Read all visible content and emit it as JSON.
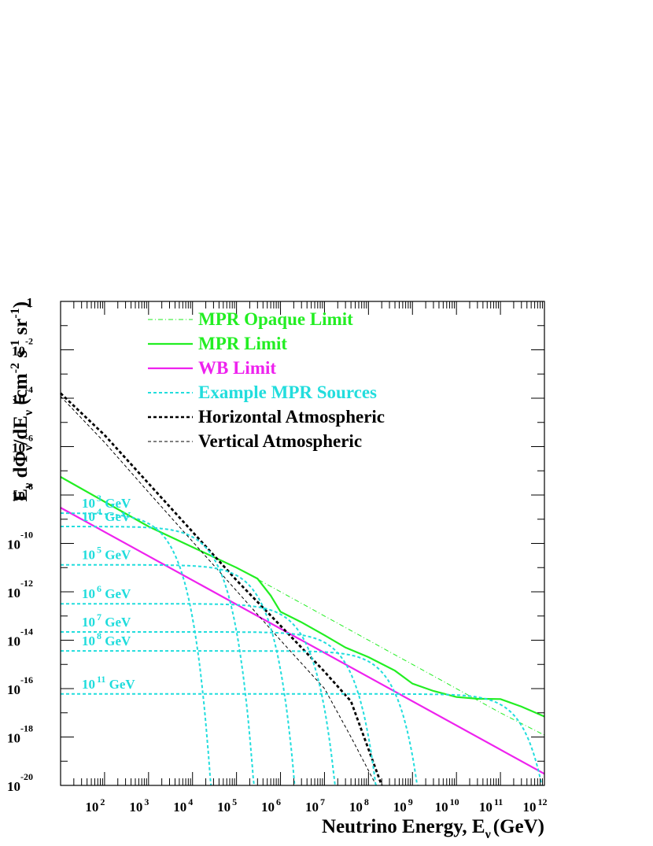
{
  "chart_data": {
    "type": "line",
    "xlabel": "Neutrino Energy, E",
    "xlabel_subscript": "ν",
    "xlabel_unit": "(GeV)",
    "ylabel_parts": {
      "e": "E",
      "nu_sub": "ν",
      "mid": " dΦ",
      "over_de": "/dE",
      "unit_open": " (cm",
      "exp_cm": "-2",
      "s": " s",
      "exp_s": "-1",
      "sr": " sr",
      "exp_sr": "-1",
      "unit_close": ")"
    },
    "x_scale": "log",
    "y_scale": "log",
    "xlim": [
      10,
      1000000000000.0
    ],
    "ylim": [
      1e-20,
      1
    ],
    "x_ticks": [
      {
        "base": "10",
        "exp": "2"
      },
      {
        "base": "10",
        "exp": "3"
      },
      {
        "base": "10",
        "exp": "4"
      },
      {
        "base": "10",
        "exp": "5"
      },
      {
        "base": "10",
        "exp": "6"
      },
      {
        "base": "10",
        "exp": "7"
      },
      {
        "base": "10",
        "exp": "8"
      },
      {
        "base": "10",
        "exp": "9"
      },
      {
        "base": "10",
        "exp": "10"
      },
      {
        "base": "10",
        "exp": "11"
      },
      {
        "base": "10",
        "exp": "12"
      }
    ],
    "y_ticks": [
      {
        "base": "1",
        "exp": ""
      },
      {
        "base": "10",
        "exp": "-2"
      },
      {
        "base": "10",
        "exp": "-4"
      },
      {
        "base": "10",
        "exp": "-6"
      },
      {
        "base": "10",
        "exp": "-8"
      },
      {
        "base": "10",
        "exp": "-10"
      },
      {
        "base": "10",
        "exp": "-12"
      },
      {
        "base": "10",
        "exp": "-14"
      },
      {
        "base": "10",
        "exp": "-16"
      },
      {
        "base": "10",
        "exp": "-18"
      },
      {
        "base": "10",
        "exp": "-20"
      }
    ],
    "grid": false,
    "legend_position": "top",
    "colors": {
      "green": "#22ee22",
      "magenta": "#ee22ee",
      "cyan": "#22dddd",
      "black": "#000000"
    },
    "series": [
      {
        "name": "MPR Opaque Limit",
        "style": "dashdot",
        "color": "#22ee22",
        "points": [
          [
            200000.0,
            5e-12
          ],
          [
            100000000000.0,
            1e-17
          ],
          [
            1000000000000.0,
            1.2e-18
          ]
        ]
      },
      {
        "name": "MPR Limit",
        "style": "solid",
        "color": "#22ee22",
        "points": [
          [
            10,
            5.6e-08
          ],
          [
            1000.0,
            5e-10
          ],
          [
            10000.0,
            7e-11
          ],
          [
            100000.0,
            1e-11
          ],
          [
            300000.0,
            3.5e-12
          ],
          [
            600000.0,
            7e-13
          ],
          [
            1000000.0,
            1.5e-13
          ],
          [
            3000000.0,
            5.5e-14
          ],
          [
            10000000.0,
            1.6e-14
          ],
          [
            30000000.0,
            5e-15
          ],
          [
            100000000.0,
            2e-15
          ],
          [
            400000000.0,
            5.5e-16
          ],
          [
            1000000000.0,
            1.6e-16
          ],
          [
            3000000000.0,
            8e-17
          ],
          [
            10000000000.0,
            4.5e-17
          ],
          [
            30000000000.0,
            3.8e-17
          ],
          [
            100000000000.0,
            3.7e-17
          ],
          [
            300000000000.0,
            1.8e-17
          ],
          [
            1000000000000.0,
            7e-18
          ]
        ]
      },
      {
        "name": "WB Limit",
        "style": "solid",
        "color": "#ee22ee",
        "points": [
          [
            10,
            3e-09
          ],
          [
            1000000000000.0,
            3e-20
          ]
        ]
      },
      {
        "name": "Example MPR Sources",
        "style": "dashed",
        "color": "#22dddd",
        "sources": [
          {
            "label_base": "10",
            "label_exp": "3",
            "label_unit": " GeV",
            "flux": 1.8e-09,
            "cutoff": 1000.0
          },
          {
            "label_base": "10",
            "label_exp": "4",
            "label_unit": " GeV",
            "flux": 5e-10,
            "cutoff": 10000.0
          },
          {
            "label_base": "10",
            "label_exp": "5",
            "label_unit": " GeV",
            "flux": 1.3e-11,
            "cutoff": 100000.0
          },
          {
            "label_base": "10",
            "label_exp": "6",
            "label_unit": " GeV",
            "flux": 3.2e-13,
            "cutoff": 1000000.0
          },
          {
            "label_base": "10",
            "label_exp": "7",
            "label_unit": " GeV",
            "flux": 2.2e-14,
            "cutoff": 10000000.0
          },
          {
            "label_base": "10",
            "label_exp": "8",
            "label_unit": " GeV",
            "flux": 3.6e-15,
            "cutoff": 100000000.0
          },
          {
            "label_base": "10",
            "label_exp": "11",
            "label_unit": " GeV",
            "flux": 6e-17,
            "cutoff": 100000000000.0
          }
        ]
      },
      {
        "name": "Horizontal Atmospheric",
        "style": "dashed-thick",
        "color": "#000000",
        "points": [
          [
            10,
            0.00016
          ],
          [
            100.0,
            3e-06
          ],
          [
            1000.0,
            3e-08
          ],
          [
            10000.0,
            3e-10
          ],
          [
            100000.0,
            3e-12
          ],
          [
            1000000.0,
            4e-14
          ],
          [
            10000000.0,
            5e-16
          ],
          [
            40000000.0,
            3e-17
          ],
          [
            200000000.0,
            1e-20
          ]
        ]
      },
      {
        "name": "Vertical Atmospheric",
        "style": "dashed-thin",
        "color": "#000000",
        "points": [
          [
            10,
            0.00012
          ],
          [
            100.0,
            1.5e-06
          ],
          [
            1000.0,
            1.3e-08
          ],
          [
            10000.0,
            1.2e-10
          ],
          [
            100000.0,
            1.1e-12
          ],
          [
            1000000.0,
            1e-14
          ],
          [
            10000000.0,
            1e-16
          ],
          [
            40000000.0,
            1e-18
          ],
          [
            150000000.0,
            1e-20
          ]
        ]
      }
    ]
  }
}
